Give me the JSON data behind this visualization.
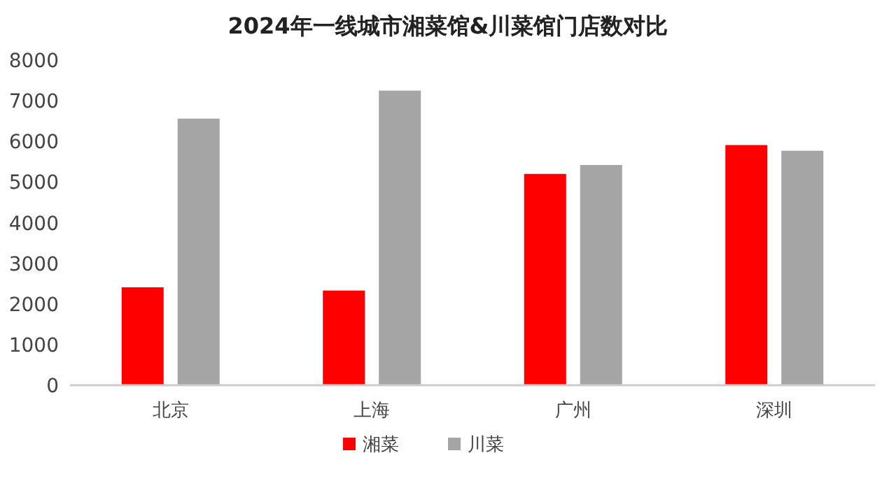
{
  "chart_data": {
    "type": "bar",
    "title": "2024年一线城市湘菜馆&川菜馆门店数对比",
    "categories": [
      "北京",
      "上海",
      "广州",
      "深圳"
    ],
    "series": [
      {
        "name": "湘菜",
        "color": "#ff0000",
        "values": [
          2410,
          2330,
          5200,
          5910
        ]
      },
      {
        "name": "川菜",
        "color": "#a5a5a5",
        "values": [
          6560,
          7250,
          5420,
          5770
        ]
      }
    ],
    "ylim": [
      0,
      8000
    ],
    "yticks": [
      0,
      1000,
      2000,
      3000,
      4000,
      5000,
      6000,
      7000,
      8000
    ],
    "grid": false,
    "legend": "bottom"
  }
}
